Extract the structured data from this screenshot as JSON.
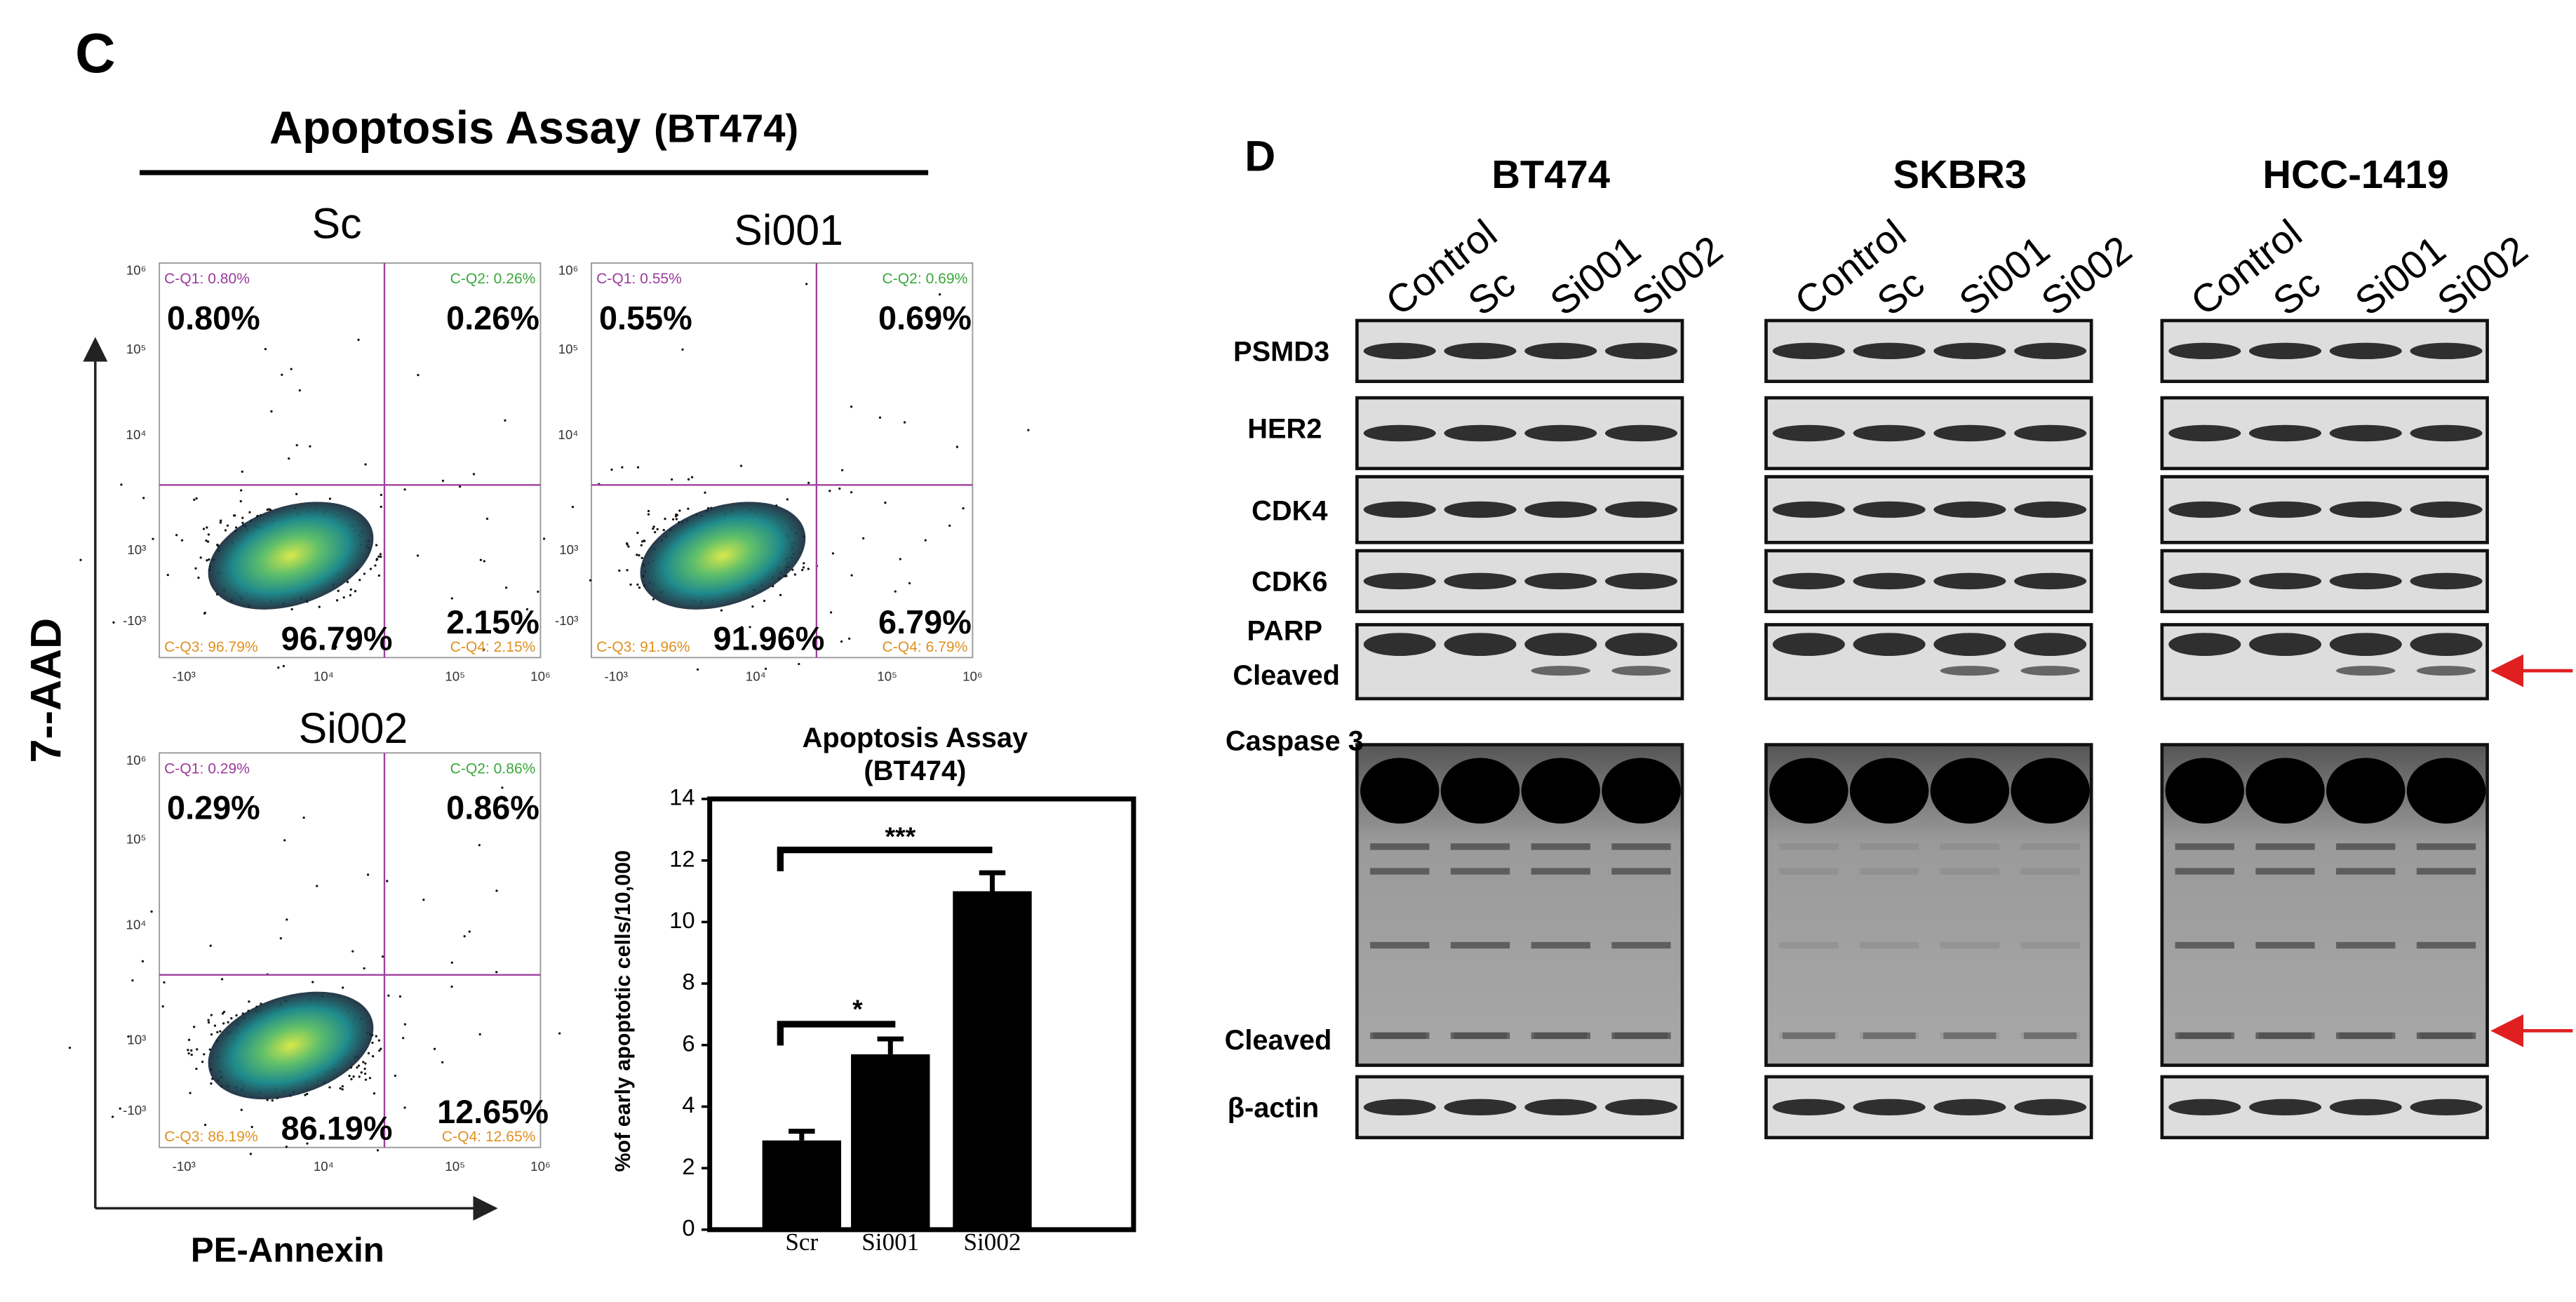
{
  "panel_c": {
    "label": "C",
    "title": "Apoptosis Assay",
    "title_suffix": "(BT474)",
    "y_axis_label": "7--AAD",
    "x_axis_label": "PE-Annexin",
    "flow_x_ticks": [
      "-10³",
      "10⁴",
      "10⁵",
      "10⁶"
    ],
    "flow_y_ticks": [
      "10⁶",
      "10⁵",
      "10⁴",
      "10³",
      "-10³"
    ],
    "plots": [
      {
        "name": "Sc",
        "gate_labels": [
          "C-Q1: 0.80%",
          "C-Q2: 0.26%",
          "C-Q3: 96.79%",
          "C-Q4: 2.15%"
        ],
        "percents": [
          "0.80%",
          "0.26%",
          "96.79%",
          "2.15%"
        ]
      },
      {
        "name": "Si001",
        "gate_labels": [
          "C-Q1: 0.55%",
          "C-Q2: 0.69%",
          "C-Q3: 91.96%",
          "C-Q4: 6.79%"
        ],
        "percents": [
          "0.55%",
          "0.69%",
          "91.96%",
          "6.79%"
        ]
      },
      {
        "name": "Si002",
        "gate_labels": [
          "C-Q1: 0.29%",
          "C-Q2: 0.86%",
          "C-Q3: 86.19%",
          "C-Q4: 12.65%"
        ],
        "percents": [
          "0.29%",
          "0.86%",
          "86.19%",
          "12.65%"
        ]
      }
    ]
  },
  "chart_data": {
    "type": "bar",
    "title": "Apoptosis Assay",
    "subtitle": "(BT474)",
    "y_label": "%of early apoptotic cells/10,000",
    "categories": [
      "Scr",
      "Si001",
      "Si002"
    ],
    "values": [
      2.9,
      5.7,
      11.0
    ],
    "errors": [
      0.3,
      0.5,
      0.6
    ],
    "color": "#000000",
    "ylim": [
      0,
      14
    ],
    "yticks": [
      0,
      2,
      4,
      6,
      8,
      10,
      12,
      14
    ],
    "annotations": [
      "*",
      "***"
    ]
  },
  "panel_d": {
    "label": "D",
    "groups": [
      {
        "name": "BT474",
        "lanes": [
          "Control",
          "Sc",
          "Si001",
          "Si002"
        ]
      },
      {
        "name": "SKBR3",
        "lanes": [
          "Control",
          "Sc",
          "Si001",
          "Si002"
        ]
      },
      {
        "name": "HCC-1419",
        "lanes": [
          "Control",
          "Sc",
          "Si001",
          "Si002"
        ]
      }
    ],
    "row_labels": [
      "PSMD3",
      "HER2",
      "CDK4",
      "CDK6",
      "PARP",
      "Cleaved",
      "Caspase 3",
      "Cleaved",
      "β-actin"
    ]
  }
}
